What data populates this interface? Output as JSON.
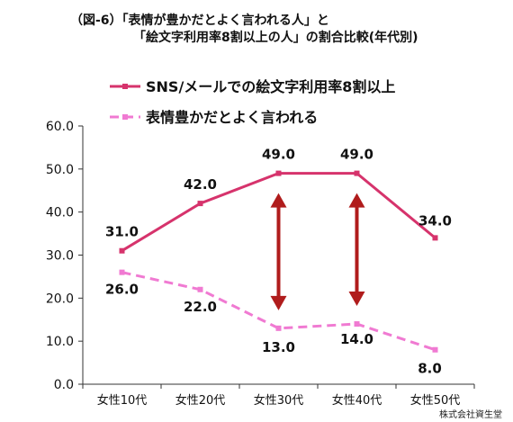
{
  "title": {
    "line1": "（図-6）「表情が豊かだとよく言われる人」と",
    "line2": "「絵文字利用率8割以上の人」の割合比較(年代別)"
  },
  "credit": "株式会社資生堂",
  "chart_data": {
    "type": "line",
    "categories": [
      "女性10代",
      "女性20代",
      "女性30代",
      "女性40代",
      "女性50代"
    ],
    "ylim": [
      0,
      60
    ],
    "yticks": [
      "0.0",
      "10.0",
      "20.0",
      "30.0",
      "40.0",
      "50.0",
      "60.0"
    ],
    "grid": false,
    "legend_placement": "top-left",
    "series": [
      {
        "name": "SNS/メールでの絵文字利用率8割以上",
        "values": [
          31.0,
          42.0,
          49.0,
          49.0,
          34.0
        ],
        "labels": [
          "31.0",
          "42.0",
          "49.0",
          "49.0",
          "34.0"
        ],
        "color": "#d6336c",
        "style": "solid"
      },
      {
        "name": "表情豊かだとよく言われる",
        "values": [
          26.0,
          22.0,
          13.0,
          14.0,
          8.0
        ],
        "labels": [
          "26.0",
          "22.0",
          "13.0",
          "14.0",
          "8.0"
        ],
        "color": "#f07ad2",
        "style": "dashed"
      }
    ],
    "annotation_arrows": [
      {
        "category": "女性30代",
        "from": 49.0,
        "to": 13.0,
        "color": "#b01c1c"
      },
      {
        "category": "女性40代",
        "from": 49.0,
        "to": 14.0,
        "color": "#b01c1c"
      }
    ]
  }
}
